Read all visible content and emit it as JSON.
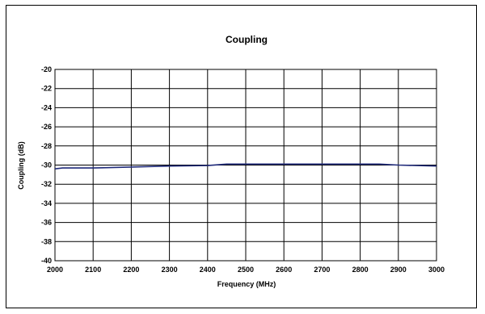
{
  "chart_data": {
    "type": "line",
    "title": "Coupling",
    "xlabel": "Frequency (MHz)",
    "ylabel": "Coupling (dB)",
    "xlim": [
      2000,
      3000
    ],
    "ylim": [
      -40,
      -20
    ],
    "x_ticks": [
      2000,
      2100,
      2200,
      2300,
      2400,
      2500,
      2600,
      2700,
      2800,
      2900,
      3000
    ],
    "y_ticks": [
      -20,
      -22,
      -24,
      -26,
      -28,
      -30,
      -32,
      -34,
      -36,
      -38,
      -40
    ],
    "grid": true,
    "legend": "none",
    "series": [
      {
        "color": "#1f2a7a",
        "x": [
          2000,
          2020,
          2100,
          2200,
          2300,
          2400,
          2450,
          2500,
          2600,
          2700,
          2800,
          2850,
          2900,
          3000
        ],
        "y": [
          -30.4,
          -30.3,
          -30.3,
          -30.2,
          -30.1,
          -30.05,
          -29.9,
          -29.9,
          -29.9,
          -29.9,
          -29.9,
          -29.9,
          -30.0,
          -30.1
        ]
      }
    ]
  }
}
